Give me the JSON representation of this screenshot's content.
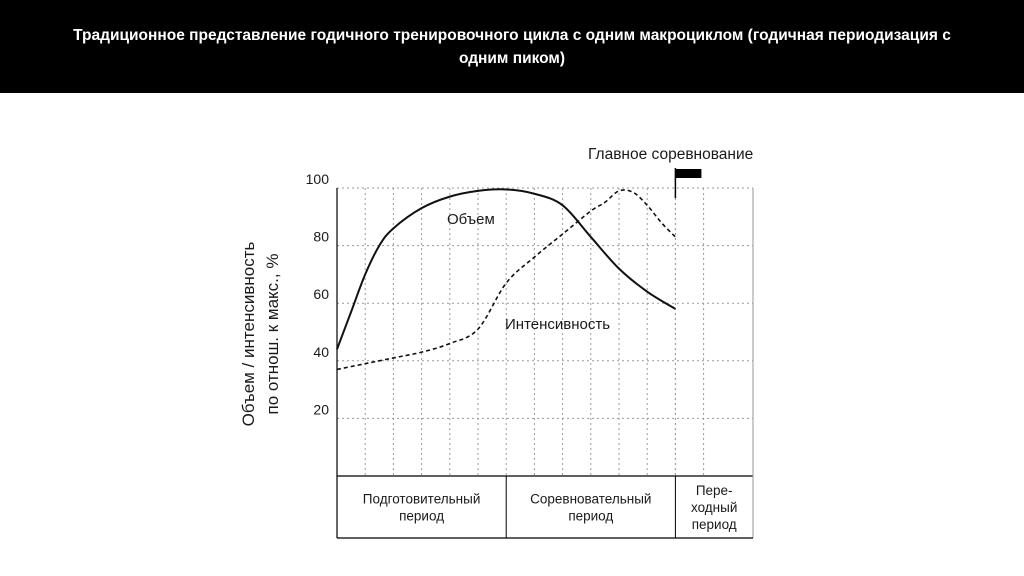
{
  "slide": {
    "title": "Традиционное представление годичного тренировочного цикла с одним макроциклом (годичная периодизация с одним пиком)"
  },
  "chart_data": {
    "type": "line",
    "title": "",
    "ylabel_line1": "Объем / интенсивность",
    "ylabel_line2": "по отнош. к макс., %",
    "xlabel": "",
    "ylim": [
      0,
      100
    ],
    "yticks": [
      20,
      40,
      60,
      80,
      100
    ],
    "xlim": [
      0,
      12
    ],
    "grid": true,
    "series": [
      {
        "name": "Объем",
        "style": "solid",
        "x": [
          0,
          0.5,
          1,
          1.5,
          2,
          3,
          4,
          5,
          6,
          7,
          8,
          9,
          10,
          11,
          12
        ],
        "y": [
          44,
          57,
          70,
          80,
          86,
          93,
          97,
          99,
          99.5,
          98,
          94,
          83,
          72,
          64,
          58
        ]
      },
      {
        "name": "Интенсивность",
        "style": "dashed",
        "x": [
          0,
          1,
          2,
          3,
          4,
          5,
          6,
          7,
          8,
          9,
          9.5,
          10,
          10.5,
          11,
          11.5,
          12
        ],
        "y": [
          37,
          39,
          41,
          43,
          46,
          51,
          67,
          76,
          84,
          92,
          95,
          99,
          98.5,
          94,
          88,
          83
        ]
      }
    ],
    "annotations": {
      "main_competition": "Главное соревнование"
    },
    "periods": [
      {
        "lines": [
          "Подготовительный",
          "период"
        ],
        "start": 0,
        "end": 6
      },
      {
        "lines": [
          "Соревновательный",
          "период"
        ],
        "start": 6,
        "end": 12
      },
      {
        "lines": [
          "Пере-",
          "ходный",
          "период"
        ],
        "start": 12,
        "end": 14
      }
    ],
    "colors": {
      "line": "#111111",
      "grid": "#9a9a9a",
      "axis": "#000000"
    }
  }
}
